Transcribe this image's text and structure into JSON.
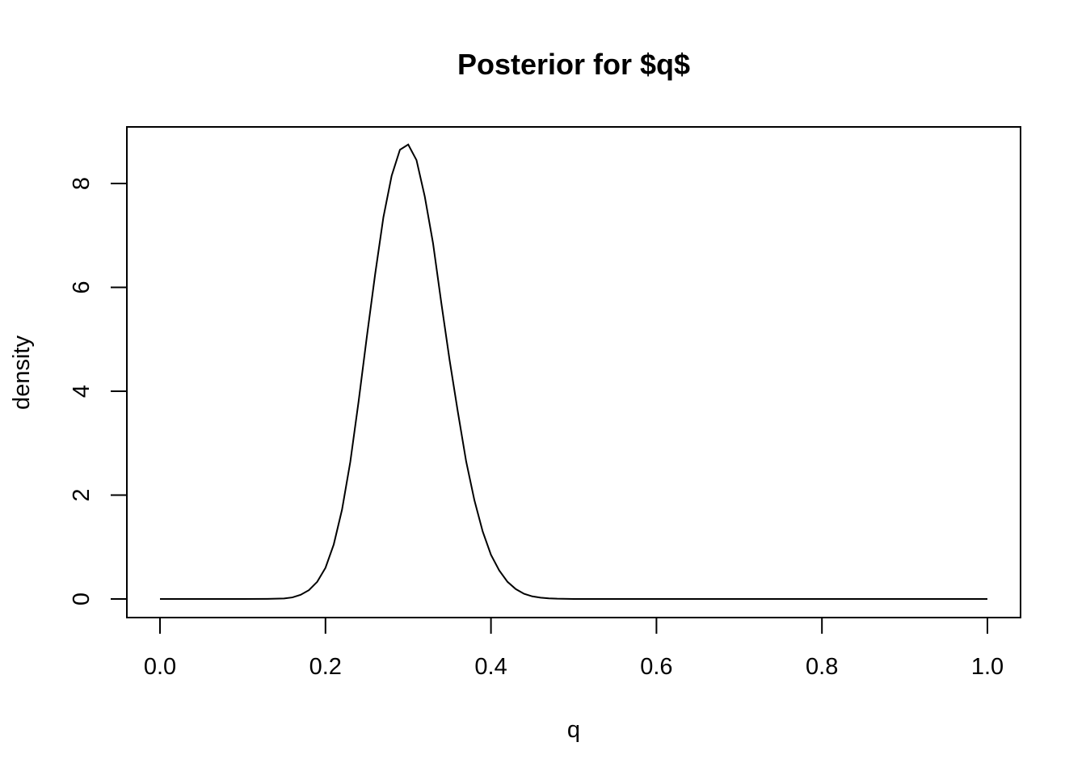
{
  "chart_data": {
    "type": "line",
    "title": "Posterior for $q$",
    "xlabel": "q",
    "ylabel": "density",
    "xlim": [
      0,
      1
    ],
    "ylim": [
      0,
      8.75
    ],
    "xticks": [
      0.0,
      0.2,
      0.4,
      0.6,
      0.8,
      1.0
    ],
    "xtick_labels": [
      "0.0",
      "0.2",
      "0.4",
      "0.6",
      "0.8",
      "1.0"
    ],
    "yticks": [
      0,
      2,
      4,
      6,
      8
    ],
    "ytick_labels": [
      "0",
      "2",
      "4",
      "6",
      "8"
    ],
    "grid": false,
    "legend": "none",
    "series": [
      {
        "x": [
          0,
          0.05,
          0.1,
          0.13,
          0.15,
          0.16,
          0.17,
          0.18,
          0.19,
          0.2,
          0.21,
          0.22,
          0.23,
          0.24,
          0.25,
          0.26,
          0.27,
          0.28,
          0.29,
          0.3,
          0.31,
          0.32,
          0.33,
          0.34,
          0.35,
          0.36,
          0.37,
          0.38,
          0.39,
          0.4,
          0.41,
          0.42,
          0.43,
          0.44,
          0.45,
          0.46,
          0.47,
          0.48,
          0.5,
          0.55,
          0.6,
          0.7,
          0.8,
          0.9,
          1.0
        ],
        "y": [
          0,
          0,
          0,
          0.002,
          0.01,
          0.03,
          0.08,
          0.17,
          0.33,
          0.6,
          1.05,
          1.72,
          2.64,
          3.8,
          5.05,
          6.25,
          7.35,
          8.15,
          8.65,
          8.75,
          8.45,
          7.75,
          6.85,
          5.7,
          4.6,
          3.6,
          2.65,
          1.9,
          1.3,
          0.85,
          0.55,
          0.33,
          0.19,
          0.1,
          0.05,
          0.025,
          0.012,
          0.005,
          0.001,
          0,
          0,
          0,
          0,
          0,
          0
        ]
      }
    ]
  }
}
